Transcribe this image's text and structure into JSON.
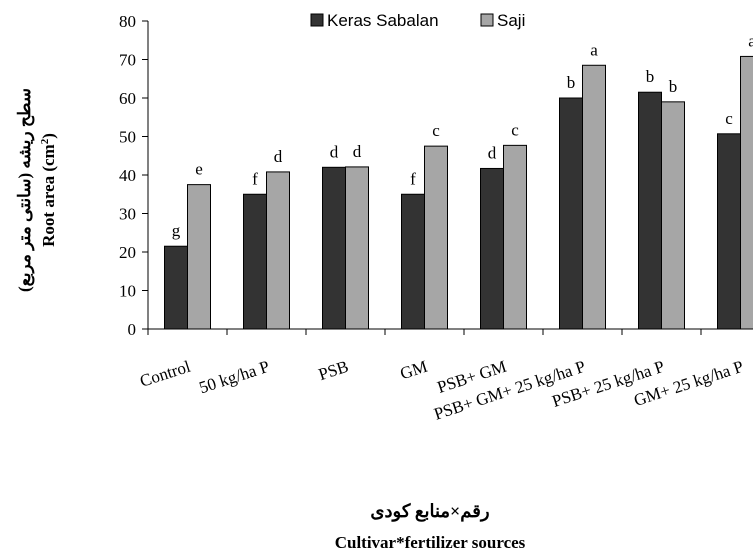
{
  "chart_data": {
    "type": "bar",
    "categories": [
      "Control",
      "50 kg/ha P",
      "PSB",
      "GM",
      "PSB+ GM",
      "PSB+ GM+ 25 kg/ha P",
      "PSB+ 25 kg/ha P",
      "GM+ 25 kg/ha P"
    ],
    "series": [
      {
        "name": "Keras Sabalan",
        "color": "#333333",
        "values": [
          21.5,
          35,
          42,
          35,
          41.7,
          60,
          61.5,
          50.7
        ],
        "letters": [
          "g",
          "f",
          "d",
          "f",
          "d",
          "b",
          "b",
          "c"
        ]
      },
      {
        "name": "Saji",
        "color": "#a6a6a6",
        "values": [
          37.5,
          40.8,
          42.1,
          47.5,
          47.7,
          68.5,
          59,
          70.8
        ],
        "letters": [
          "e",
          "d",
          "d",
          "c",
          "c",
          "a",
          "b",
          "a"
        ]
      }
    ],
    "ylabel_fa": "سطح ریشه (سانتی متر مربع)",
    "ylabel_en": "Root area (cm",
    "ylabel_sup": "2",
    "ylabel_close": ")",
    "xlabel_fa": "رقم×منابع کودی",
    "xlabel_en": "Cultivar*fertilizer sources",
    "ylim": [
      0,
      80
    ],
    "yticks": [
      0,
      10,
      20,
      30,
      40,
      50,
      60,
      70,
      80
    ],
    "legend_position": "top-center",
    "grid": false
  }
}
